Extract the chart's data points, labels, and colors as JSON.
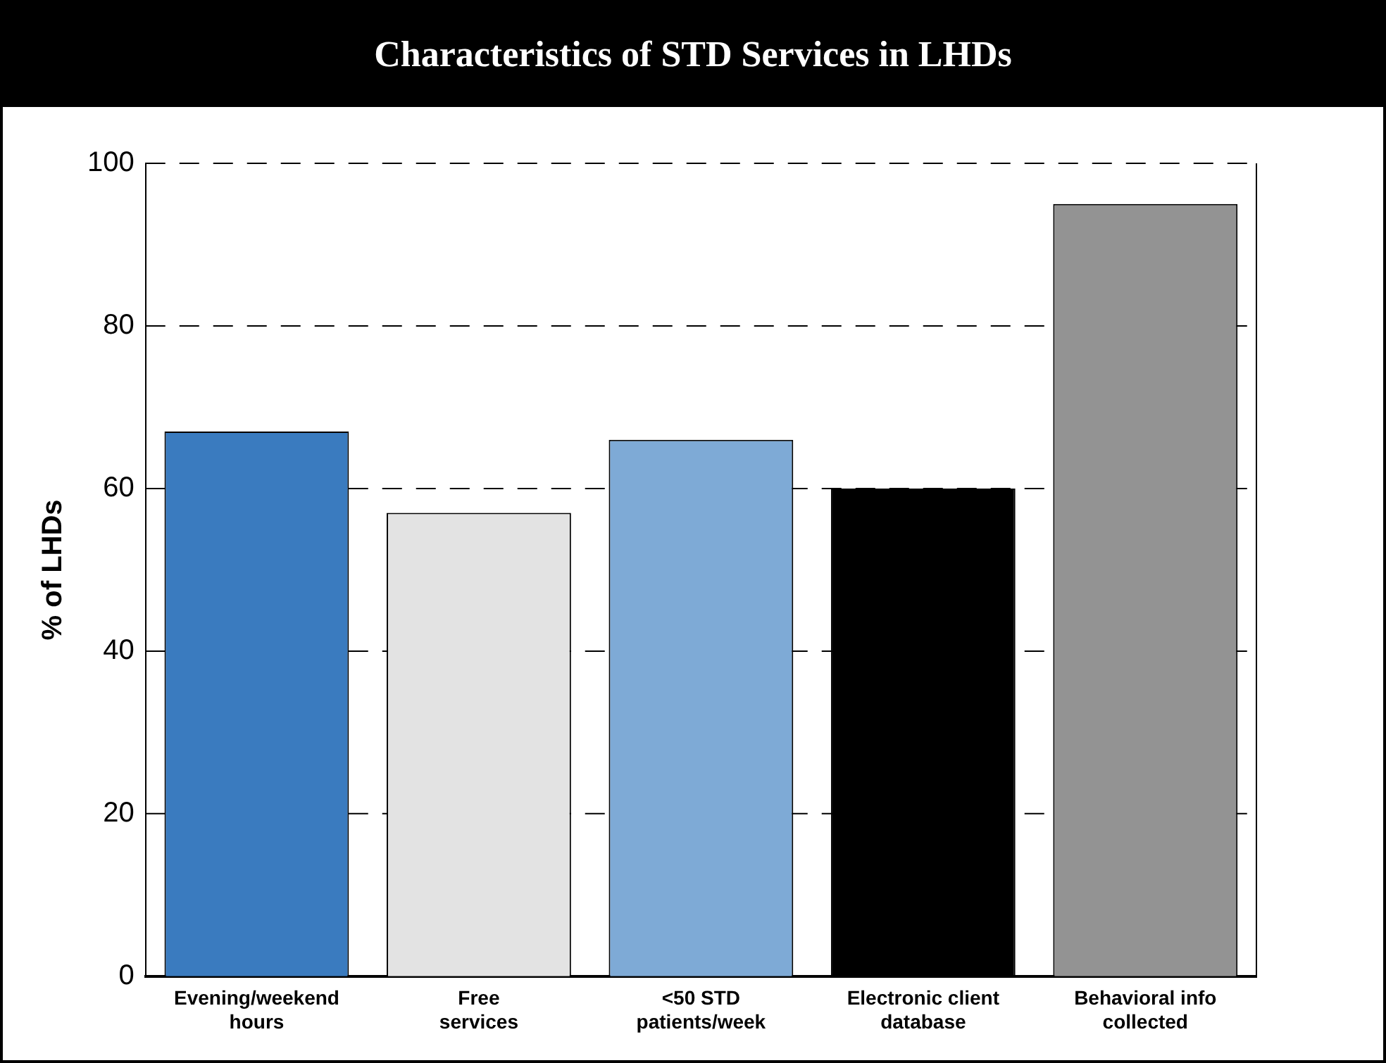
{
  "chart_data": {
    "type": "bar",
    "title": "Characteristics of STD Services in LHDs",
    "ylabel": "% of LHDs",
    "categories": [
      "Evening/weekend hours",
      "Free services",
      "<50 STD patients/week",
      "Electronic client database",
      "Behavioral info collected"
    ],
    "values": [
      67,
      57,
      66,
      60,
      95
    ],
    "colors": [
      "#3a7bbf",
      "#e3e3e3",
      "#7eaad6",
      "#000000",
      "#939393"
    ],
    "ylim": [
      0,
      100
    ],
    "yticks": [
      0,
      20,
      40,
      60,
      80,
      100
    ],
    "grid": "y",
    "legend": false
  }
}
